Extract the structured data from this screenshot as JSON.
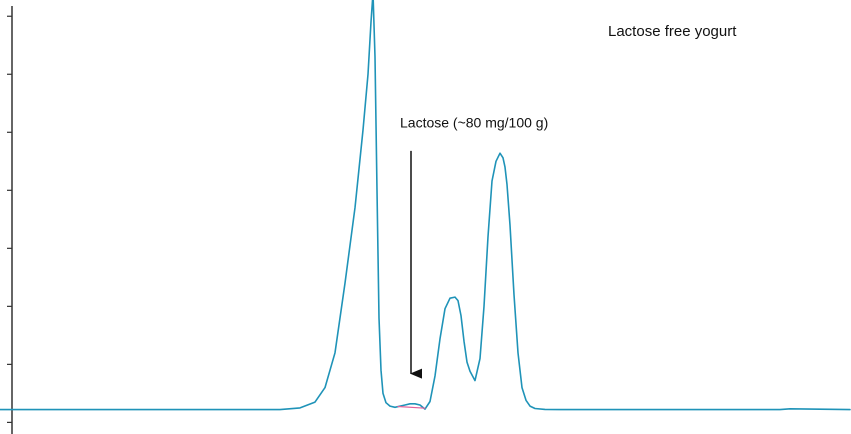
{
  "chart_data": {
    "type": "line",
    "title": "",
    "xlabel": "",
    "ylabel": "",
    "grid": false,
    "legend": "none",
    "series": [
      {
        "name": "",
        "color": "#1f93b8",
        "x": [
          0,
          100,
          200,
          280,
          300,
          315,
          325,
          335,
          345,
          355,
          363,
          368,
          371,
          373,
          375,
          377,
          379,
          381,
          383,
          386,
          390,
          395,
          400,
          405,
          410,
          415,
          420,
          425,
          430,
          435,
          440,
          445,
          450,
          455,
          458,
          461,
          464,
          467,
          470,
          475,
          480,
          484,
          488,
          492,
          496,
          500,
          503,
          505,
          507,
          510,
          514,
          518,
          522,
          526,
          530,
          535,
          545,
          560,
          600,
          700,
          780,
          790,
          850
        ],
        "y": [
          1.0,
          1.0,
          1.0,
          1.0,
          2.5,
          7.5,
          20,
          50,
          110,
          175,
          242,
          290,
          335,
          360,
          305,
          190,
          80,
          35,
          15,
          7,
          4,
          3,
          4,
          5,
          6,
          6,
          5,
          1.5,
          8,
          30,
          62,
          88,
          97,
          98,
          95,
          82,
          60,
          42,
          34,
          26,
          45,
          90,
          150,
          198,
          215,
          222,
          218,
          210,
          195,
          160,
          100,
          50,
          20,
          9,
          4,
          2,
          1.2,
          1.0,
          1.0,
          1.0,
          1.0,
          1.7,
          1.0
        ]
      },
      {
        "name": "",
        "color": "#e0609a",
        "x": [
          398,
          425
        ],
        "y": [
          3.7,
          2.2
        ]
      }
    ],
    "xlim": [
      0,
      851
    ],
    "ylim": [
      -20,
      354
    ],
    "yticks": [
      -10,
      40,
      90,
      140,
      190,
      240,
      290,
      340
    ],
    "annotations": [
      {
        "text": "Lactose free yogurt",
        "x": 608,
        "y": 323
      },
      {
        "text": "Lactose (~80 mg/100 g)",
        "x": 400,
        "y": 244,
        "arrow_from": [
          411,
          224
        ],
        "arrow_to": [
          411,
          32
        ]
      }
    ]
  }
}
